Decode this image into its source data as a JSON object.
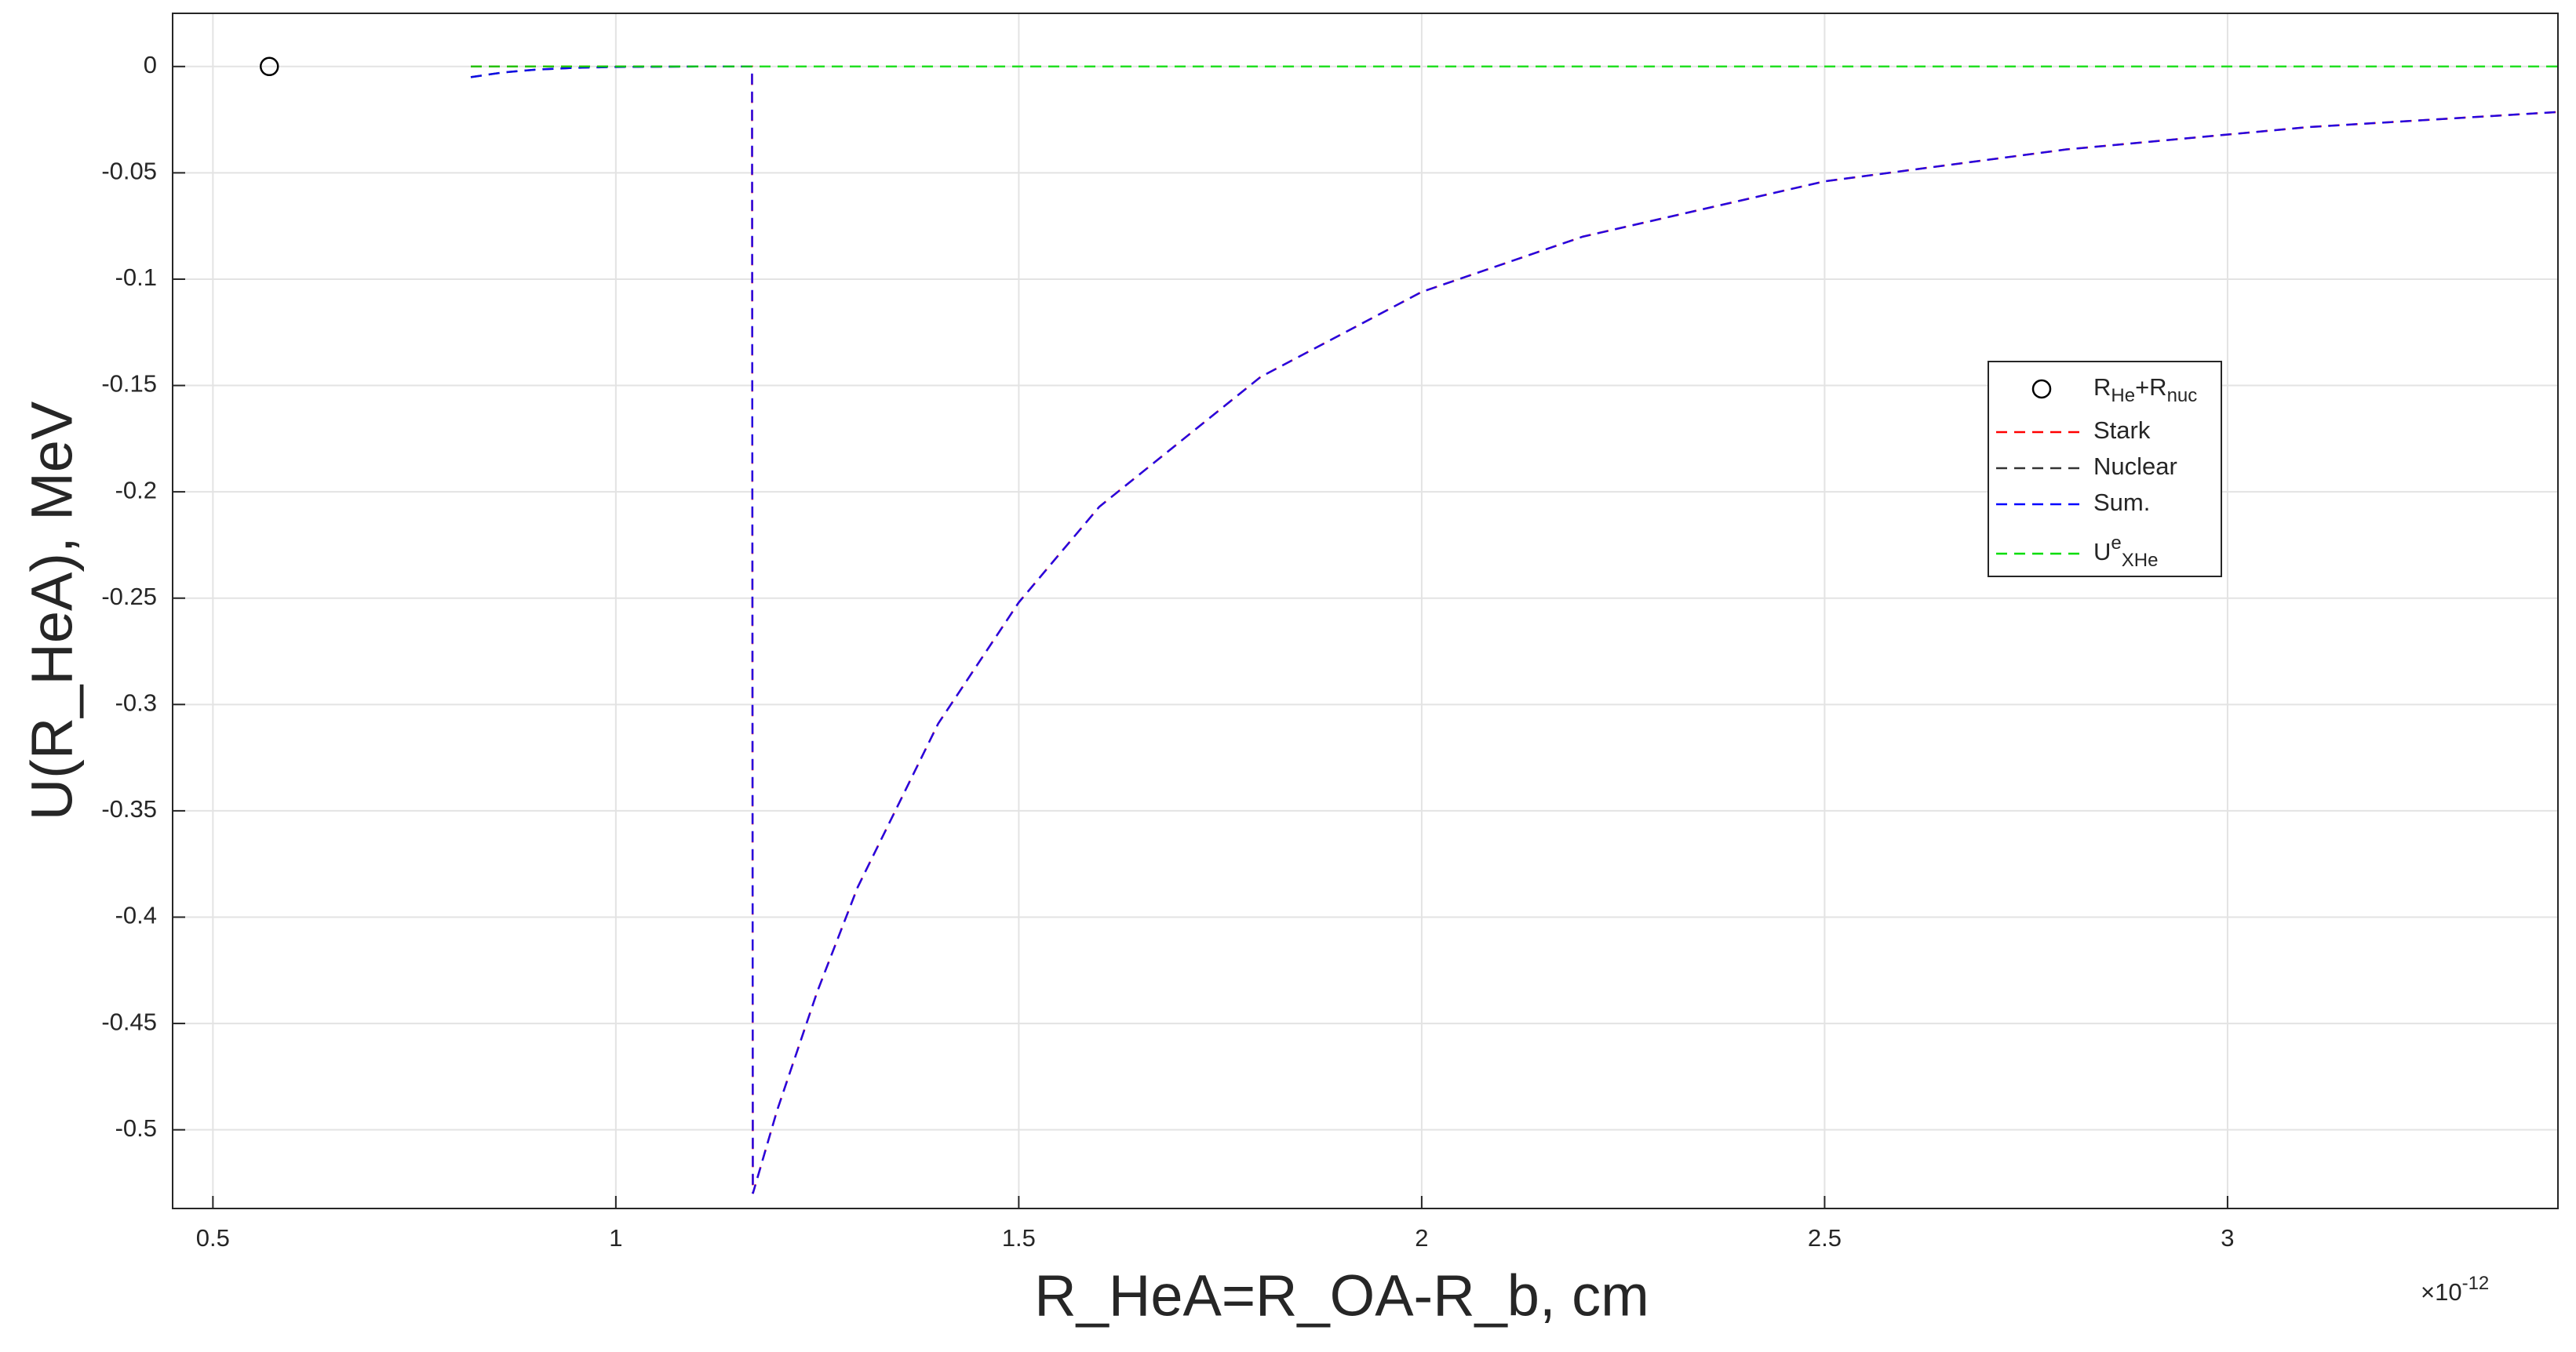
{
  "chart_data": {
    "type": "line",
    "xlabel": "R_HeA=R_OA-R_b, cm",
    "ylabel": "U(R_HeA), MeV",
    "x_multiplier": [
      {
        "text": "×10"
      },
      {
        "text": "-12",
        "shift": "sup"
      }
    ],
    "xlim": [
      0.45,
      3.41
    ],
    "ylim": [
      -0.537,
      0.025
    ],
    "xticks": [
      0.5,
      1,
      1.5,
      2,
      2.5,
      3
    ],
    "yticks": [
      0,
      -0.05,
      -0.1,
      -0.15,
      -0.2,
      -0.25,
      -0.3,
      -0.35,
      -0.4,
      -0.45,
      -0.5
    ],
    "grid": true,
    "legend": "right",
    "series": [
      {
        "name": [
          {
            "text": "R"
          },
          {
            "text": "He",
            "shift": "sub"
          },
          {
            "text": "+R"
          },
          {
            "text": "nuc",
            "shift": "sub"
          }
        ],
        "color": "#000000",
        "marker": "circle",
        "line": "none",
        "x": [
          0.57
        ],
        "values": [
          0
        ]
      },
      {
        "name": "Stark",
        "color": "#ff0000",
        "line": "dashed",
        "x": [
          0.82,
          0.9,
          1.0,
          1.1,
          1.169,
          1.17,
          1.2,
          1.25,
          1.3,
          1.4,
          1.5,
          1.6,
          1.8,
          2.0,
          2.2,
          2.5,
          2.8,
          3.1,
          3.41
        ],
        "values": [
          0,
          0,
          0,
          0,
          0,
          -0.53,
          -0.491,
          -0.435,
          -0.386,
          -0.309,
          -0.252,
          -0.207,
          -0.146,
          -0.106,
          -0.08,
          -0.054,
          -0.039,
          -0.0285,
          -0.0214
        ]
      },
      {
        "name": "Nuclear",
        "color": "#333333",
        "line": "dashed",
        "x": [
          0.82,
          0.86,
          0.9,
          0.95,
          1.0,
          1.1,
          1.169
        ],
        "values": [
          -0.005,
          -0.0028,
          -0.0015,
          -0.0006,
          -0.0002,
          0,
          0
        ]
      },
      {
        "name": "Sum.",
        "color": "#0000ff",
        "line": "dashed",
        "x": [
          0.82,
          0.86,
          0.9,
          0.95,
          1.0,
          1.1,
          1.169,
          1.17,
          1.2,
          1.25,
          1.3,
          1.4,
          1.5,
          1.6,
          1.8,
          2.0,
          2.2,
          2.5,
          2.8,
          3.1,
          3.41
        ],
        "values": [
          -0.005,
          -0.0028,
          -0.0015,
          -0.0006,
          -0.0002,
          0,
          0,
          -0.53,
          -0.491,
          -0.435,
          -0.386,
          -0.309,
          -0.252,
          -0.207,
          -0.146,
          -0.106,
          -0.08,
          -0.054,
          -0.039,
          -0.0285,
          -0.0214
        ]
      },
      {
        "name": [
          {
            "text": "U"
          },
          {
            "text": "e",
            "shift": "sup"
          },
          {
            "text": "XHe",
            "shift": "sub"
          }
        ],
        "color": "#00dd00",
        "line": "dashed",
        "x": [
          0.82,
          3.41
        ],
        "values": [
          0,
          0
        ]
      }
    ]
  }
}
